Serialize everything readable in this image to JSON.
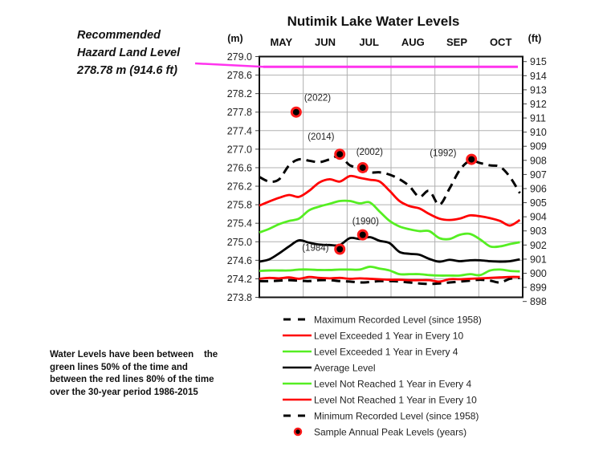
{
  "chart_data": {
    "type": "line",
    "title": "Nutimik Lake Water Levels",
    "ylabel_left": "(m)",
    "ylabel_right": "(ft)",
    "x_tick_labels": [
      "MAY",
      "JUN",
      "JUL",
      "AUG",
      "SEP",
      "OCT"
    ],
    "ylim": [
      273.8,
      279.0
    ],
    "y_ticks_left": [
      "279.0",
      "278.6",
      "278.2",
      "277.8",
      "277.4",
      "277.0",
      "276.6",
      "276.2",
      "275.8",
      "275.4",
      "275.0",
      "274.6",
      "274.2",
      "273.8"
    ],
    "y_ticks_right": [
      "915",
      "914",
      "913",
      "912",
      "911",
      "910",
      "909",
      "908",
      "907",
      "906",
      "905",
      "904",
      "903",
      "902",
      "901",
      "900",
      "899",
      "898"
    ],
    "grid": true,
    "legend_placement": "below",
    "x": [
      "05-01",
      "05-08",
      "05-15",
      "05-22",
      "05-29",
      "06-05",
      "06-12",
      "06-19",
      "06-26",
      "07-03",
      "07-10",
      "07-17",
      "07-24",
      "07-31",
      "08-07",
      "08-14",
      "08-21",
      "08-28",
      "09-04",
      "09-11",
      "09-18",
      "09-25",
      "10-02",
      "10-09",
      "10-16",
      "10-23",
      "10-30"
    ],
    "series": [
      {
        "name": "Maximum Recorded Level (since 1958)",
        "color": "#000000",
        "dashed": true,
        "values": [
          276.4,
          276.3,
          276.35,
          276.65,
          276.78,
          276.75,
          276.72,
          276.78,
          276.85,
          276.65,
          276.6,
          276.5,
          276.5,
          276.45,
          276.35,
          276.2,
          275.97,
          276.1,
          275.8,
          276.15,
          276.55,
          276.75,
          276.7,
          276.65,
          276.62,
          276.4,
          276.05
        ]
      },
      {
        "name": "Level Exceeded 1 Year in Every 10",
        "color": "#ff0000",
        "dashed": false,
        "values": [
          275.78,
          275.87,
          275.95,
          276.01,
          275.97,
          276.1,
          276.28,
          276.35,
          276.3,
          276.42,
          276.38,
          276.34,
          276.3,
          276.1,
          275.88,
          275.77,
          275.72,
          275.6,
          275.5,
          275.47,
          275.5,
          275.57,
          275.55,
          275.51,
          275.45,
          275.35,
          275.47
        ]
      },
      {
        "name": "Level Exceeded 1 Year in Every 4",
        "color": "#55ee22",
        "dashed": false,
        "values": [
          275.2,
          275.28,
          275.38,
          275.45,
          275.5,
          275.68,
          275.76,
          275.82,
          275.88,
          275.88,
          275.83,
          275.85,
          275.65,
          275.45,
          275.33,
          275.27,
          275.23,
          275.23,
          275.08,
          275.06,
          275.15,
          275.17,
          275.05,
          274.9,
          274.9,
          274.95,
          274.99
        ]
      },
      {
        "name": "Average Level",
        "color": "#000000",
        "dashed": false,
        "values": [
          274.57,
          274.62,
          274.75,
          274.9,
          275.03,
          274.98,
          274.94,
          274.93,
          274.93,
          275.08,
          275.06,
          275.1,
          275.02,
          274.97,
          274.78,
          274.74,
          274.72,
          274.63,
          274.57,
          274.61,
          274.58,
          274.6,
          274.6,
          274.58,
          274.57,
          274.58,
          274.62
        ]
      },
      {
        "name": "Level Not Reached 1 Year in Every 4",
        "color": "#55ee22",
        "dashed": false,
        "values": [
          274.37,
          274.38,
          274.38,
          274.38,
          274.4,
          274.4,
          274.39,
          274.39,
          274.4,
          274.4,
          274.4,
          274.46,
          274.42,
          274.38,
          274.3,
          274.3,
          274.3,
          274.28,
          274.27,
          274.27,
          274.27,
          274.3,
          274.28,
          274.38,
          274.4,
          274.37,
          274.36
        ]
      },
      {
        "name": "Level Not Reached 1 Year in Every 10",
        "color": "#ff0000",
        "dashed": false,
        "values": [
          274.2,
          274.22,
          274.21,
          274.23,
          274.2,
          274.24,
          274.22,
          274.21,
          274.22,
          274.2,
          274.21,
          274.2,
          274.19,
          274.18,
          274.18,
          274.17,
          274.17,
          274.17,
          274.14,
          274.19,
          274.19,
          274.2,
          274.21,
          274.22,
          274.23,
          274.24,
          274.24
        ]
      },
      {
        "name": "Minimum Recorded Level (since 1958)",
        "color": "#000000",
        "dashed": true,
        "values": [
          274.15,
          274.15,
          274.16,
          274.17,
          274.16,
          274.15,
          274.17,
          274.17,
          274.15,
          274.14,
          274.12,
          274.13,
          274.15,
          274.15,
          274.14,
          274.12,
          274.1,
          274.09,
          274.1,
          274.12,
          274.14,
          274.16,
          274.18,
          274.16,
          274.12,
          274.2,
          274.22
        ]
      }
    ],
    "peaks": {
      "name": "Sample Annual Peak Levels (years)",
      "points": [
        {
          "label": "(2022)",
          "date": "05-27",
          "value": 277.8
        },
        {
          "label": "(2014)",
          "date": "06-26",
          "value": 276.89
        },
        {
          "label": "(2002)",
          "date": "07-12",
          "value": 276.6
        },
        {
          "label": "(1992)",
          "date": "09-26",
          "value": 276.78
        },
        {
          "label": "(1990)",
          "date": "07-12",
          "value": 275.15
        },
        {
          "label": "(1984)",
          "date": "06-26",
          "value": 274.84
        }
      ]
    },
    "hazard_level": {
      "value": 278.78,
      "color": "#ff33ee"
    }
  },
  "annotations": {
    "hazard_lines": [
      "Recommended",
      "Hazard Land Level",
      "278.78 m (914.6 ft)"
    ],
    "water_note": "Water Levels have been between    the\ngreen lines 50% of the time and\nbetween the red lines 80% of the time\nover the 30-year period 1986-2015"
  }
}
